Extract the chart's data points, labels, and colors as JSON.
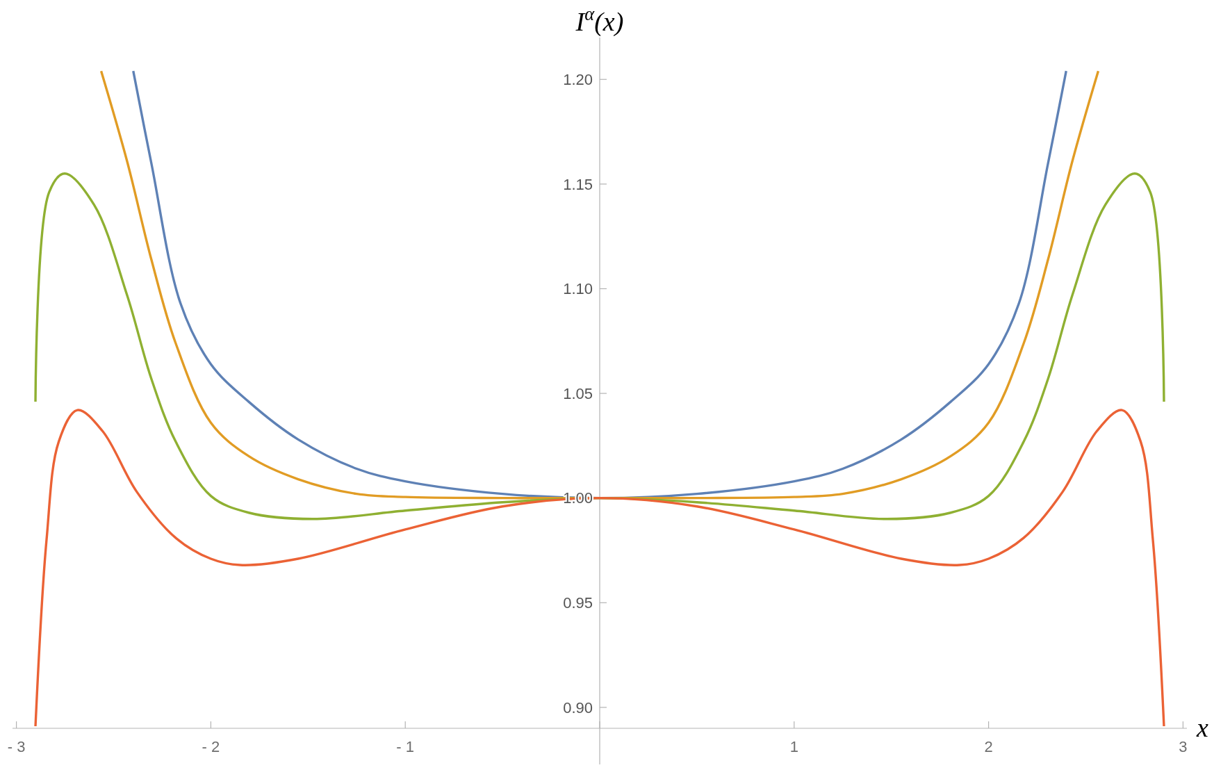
{
  "chart_data": {
    "type": "line",
    "xlabel": "x",
    "ylabel": "I$^{α}$(x)",
    "xlim": [
      -3.02,
      3.02
    ],
    "ylim": [
      0.89,
      1.22
    ],
    "xticks": [
      {
        "value": -3,
        "label": "- 3"
      },
      {
        "value": -2,
        "label": "- 2"
      },
      {
        "value": -1,
        "label": "- 1"
      },
      {
        "value": 0,
        "label": null
      },
      1,
      2,
      3
    ],
    "yticks": [
      {
        "value": 0.9,
        "label": "0.90"
      },
      {
        "value": 0.95,
        "label": "0.95"
      },
      {
        "value": 1,
        "label": "1.00"
      },
      {
        "value": 1.05,
        "label": "1.05"
      },
      {
        "value": 1.1,
        "label": "1.10"
      },
      {
        "value": 1.15,
        "label": "1.15"
      },
      {
        "value": 1.2,
        "label": "1.20"
      }
    ],
    "grid": false,
    "series": [
      {
        "color": "#5e81b5",
        "x": [
          -2.399,
          -2.306,
          -2.156,
          -2,
          -1.805,
          -1.551,
          -1.25,
          -1,
          -0.5,
          0,
          0.5,
          1,
          1.25,
          1.551,
          1.805,
          2,
          2.156,
          2.306,
          2.399
        ],
        "values": [
          1.204,
          1.16,
          1.093,
          1.064,
          1.046,
          1.028,
          1.014,
          1.008,
          1.002,
          1,
          1.002,
          1.008,
          1.014,
          1.028,
          1.046,
          1.064,
          1.093,
          1.16,
          1.204
        ]
      },
      {
        "color": "#e19c24",
        "x": [
          -2.564,
          -2.431,
          -2.306,
          -2.181,
          -2,
          -1.805,
          -1.551,
          -1.25,
          -1,
          -0.5,
          0,
          0.5,
          1,
          1.25,
          1.551,
          1.805,
          2,
          2.181,
          2.306,
          2.431,
          2.564
        ],
        "values": [
          1.204,
          1.161,
          1.114,
          1.074,
          1.036,
          1.02,
          1.009,
          1.002,
          1.0005,
          1,
          1,
          1,
          1.0005,
          1.002,
          1.009,
          1.02,
          1.036,
          1.074,
          1.114,
          1.161,
          1.204
        ]
      },
      {
        "color": "#8fb032",
        "x": [
          -2.902,
          -2.832,
          -2.752,
          -2.6,
          -2.431,
          -2.306,
          -2.181,
          -2,
          -1.805,
          -1.476,
          -1,
          -0.5,
          0,
          0.5,
          1,
          1.476,
          1.805,
          2,
          2.181,
          2.306,
          2.431,
          2.6,
          2.752,
          2.832,
          2.902
        ],
        "values": [
          1.046,
          1.146,
          1.155,
          1.14,
          1.097,
          1.057,
          1.027,
          1.001,
          0.993,
          0.99,
          0.994,
          0.998,
          1,
          0.998,
          0.994,
          0.99,
          0.993,
          1.001,
          1.027,
          1.057,
          1.097,
          1.14,
          1.155,
          1.146,
          1.046
        ]
      },
      {
        "color": "#eb6235",
        "x": [
          -2.902,
          -2.845,
          -2.782,
          -2.686,
          -2.557,
          -2.381,
          -2.181,
          -2,
          -1.85,
          -1.551,
          -1,
          -0.5,
          0,
          0.5,
          1,
          1.551,
          1.85,
          2,
          2.181,
          2.381,
          2.557,
          2.686,
          2.782,
          2.845,
          2.902
        ],
        "values": [
          0.891,
          0.98,
          1.027,
          1.042,
          1.032,
          1.003,
          0.981,
          0.971,
          0.968,
          0.971,
          0.985,
          0.996,
          1,
          0.996,
          0.985,
          0.971,
          0.968,
          0.971,
          0.981,
          1.003,
          1.032,
          1.042,
          1.027,
          0.98,
          0.891
        ]
      }
    ]
  }
}
